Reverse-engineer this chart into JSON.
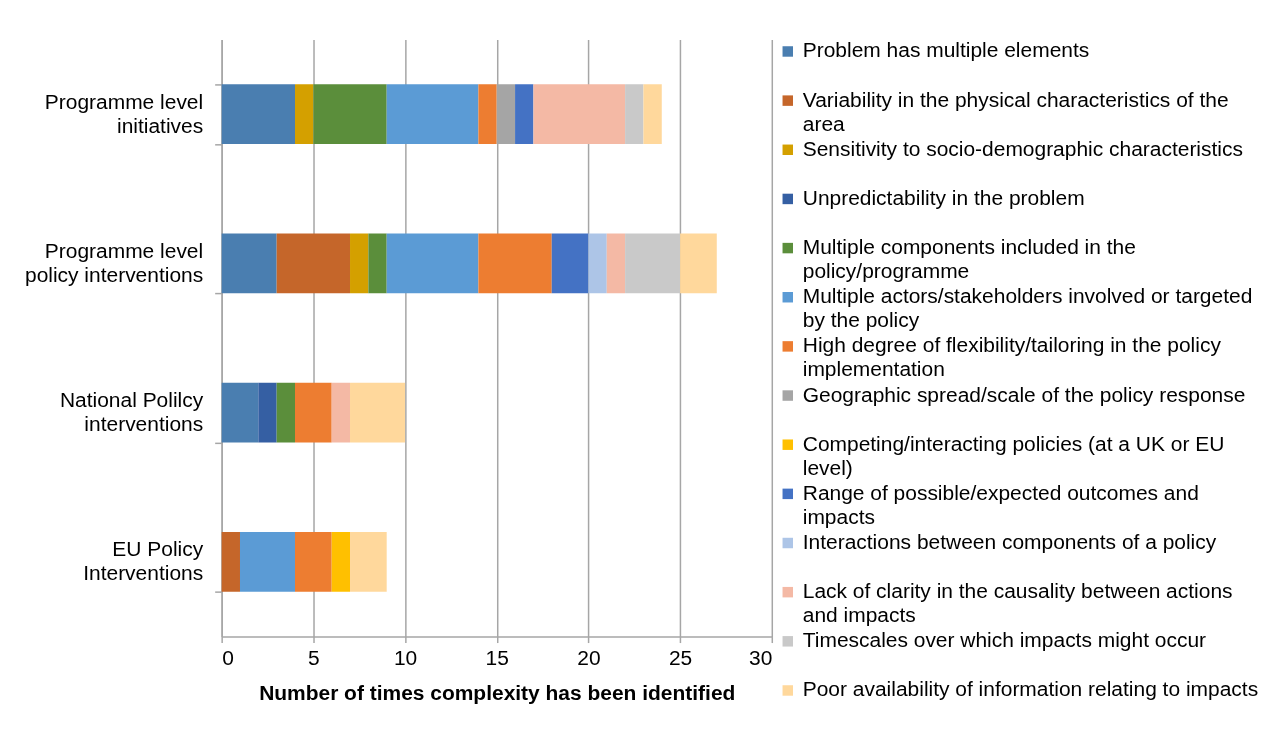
{
  "chart_data": {
    "type": "bar",
    "orientation": "horizontal",
    "stacked": true,
    "categories": [
      "Programme level initiatives",
      "Programme level policy interventions",
      "National Polilcy interventions",
      "EU Policy Interventions"
    ],
    "xlabel": "Number of times complexity has been identified",
    "xlim": [
      0,
      30
    ],
    "xticks": [
      0,
      5,
      10,
      15,
      20,
      25,
      30
    ],
    "grid": "x",
    "legend": "right",
    "series": [
      {
        "name": "Problem has multiple elements",
        "color": "#4a7eb0",
        "values": [
          4,
          3,
          2,
          null
        ]
      },
      {
        "name": "Variability in  the physical characteristics of the area",
        "color": "#c5662a",
        "values": [
          null,
          4,
          null,
          1
        ]
      },
      {
        "name": "Sensitivity to socio-demographic characteristics",
        "color": "#d4a000",
        "values": [
          1,
          1,
          null,
          null
        ]
      },
      {
        "name": "Unpredictability in the problem",
        "color": "#355fa3",
        "values": [
          null,
          null,
          1,
          null
        ]
      },
      {
        "name": "Multiple components  included in the policy/programme",
        "color": "#5b8e3b",
        "values": [
          4,
          1,
          1,
          null
        ]
      },
      {
        "name": "Multiple actors/stakeholders involved or targeted by the policy",
        "color": "#5b9bd5",
        "values": [
          5,
          5,
          null,
          3
        ]
      },
      {
        "name": "High degree of flexibility/tailoring in the policy implementation",
        "color": "#ed7d31",
        "values": [
          1,
          4,
          2,
          2
        ]
      },
      {
        "name": "Geographic spread/scale of the policy response",
        "color": "#a5a5a5",
        "values": [
          1,
          null,
          null,
          null
        ]
      },
      {
        "name": "Competing/interacting policies (at a UK or EU level)",
        "color": "#ffc000",
        "values": [
          null,
          null,
          null,
          1
        ]
      },
      {
        "name": "Range of possible/expected outcomes and impacts",
        "color": "#4472c4",
        "values": [
          1,
          2,
          null,
          null
        ]
      },
      {
        "name": "Interactions between components of a policy",
        "color": "#adc5e7",
        "values": [
          null,
          1,
          null,
          null
        ]
      },
      {
        "name": "Lack of clarity in the causality between actions and impacts",
        "color": "#f4b9a5",
        "values": [
          5,
          1,
          1,
          null
        ]
      },
      {
        "name": "Timescales over which impacts might occur",
        "color": "#c9c9c9",
        "values": [
          1,
          3,
          null,
          null
        ]
      },
      {
        "name": "Poor availability of information relating to impacts",
        "color": "#ffd89c",
        "values": [
          1,
          2,
          3,
          2
        ]
      }
    ]
  }
}
